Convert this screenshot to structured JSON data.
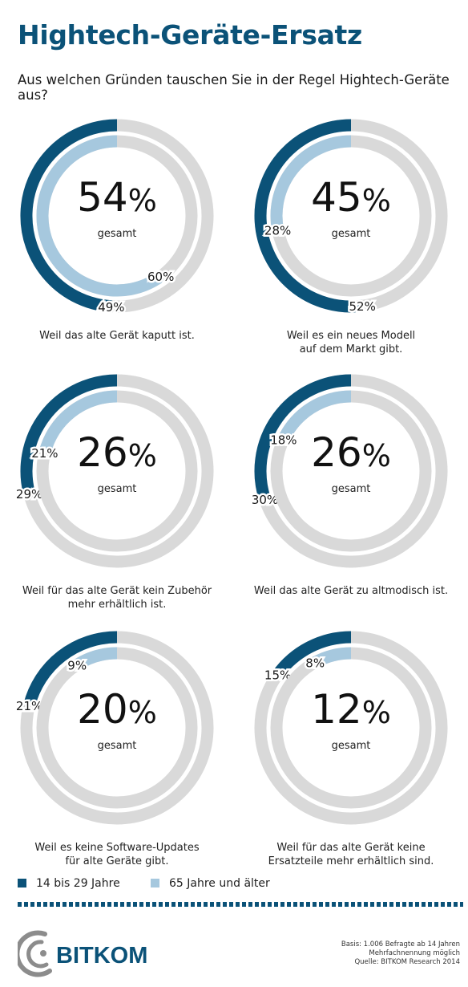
{
  "title": "Hightech-Geräte-Ersatz",
  "subtitle": "Aus welchen Gründen tauschen Sie in der Regel Hightech-Geräte aus?",
  "colors": {
    "young": "#0b5278",
    "old": "#a6c8de",
    "track": "#d9d9d9",
    "title": "#0b5278"
  },
  "total_label": "gesamt",
  "chart_data": {
    "type": "donut",
    "series": [
      {
        "name": "14 bis 29 Jahre",
        "key": "young"
      },
      {
        "name": "65 Jahre und älter",
        "key": "old"
      }
    ],
    "charts": [
      {
        "total": 54,
        "total_label": "54",
        "young": 49,
        "old": 60,
        "young_label": "49%",
        "old_label": "60%",
        "caption_lines": [
          "Weil das alte Gerät kaputt ist."
        ]
      },
      {
        "total": 45,
        "total_label": "45",
        "young": 52,
        "old": 28,
        "young_label": "52%",
        "old_label": "28%",
        "caption_lines": [
          "Weil es ein neues Modell",
          "auf dem Markt gibt."
        ]
      },
      {
        "total": 26,
        "total_label": "26",
        "young": 29,
        "old": 21,
        "young_label": "29%",
        "old_label": "21%",
        "caption_lines": [
          "Weil für das alte Gerät kein Zubehör",
          "mehr erhältlich ist."
        ]
      },
      {
        "total": 26,
        "total_label": "26",
        "young": 30,
        "old": 18,
        "young_label": "30%",
        "old_label": "18%",
        "caption_lines": [
          "Weil das alte Gerät zu altmodisch ist."
        ]
      },
      {
        "total": 20,
        "total_label": "20",
        "young": 21,
        "old": 9,
        "young_label": "21%",
        "old_label": "9%",
        "caption_lines": [
          "Weil es keine Software-Updates",
          "für alte Geräte gibt."
        ]
      },
      {
        "total": 12,
        "total_label": "12",
        "young": 15,
        "old": 8,
        "young_label": "15%",
        "old_label": "8%",
        "caption_lines": [
          "Weil für das alte Gerät keine",
          "Ersatzteile mehr erhältlich sind."
        ]
      }
    ]
  },
  "legend": [
    {
      "label": "14 bis 29 Jahre",
      "key": "young"
    },
    {
      "label": "65 Jahre und älter",
      "key": "old"
    }
  ],
  "logo_text": "BITKOM",
  "footer_lines": [
    "Basis: 1.006 Befragte ab 14 Jahren",
    "Mehrfachnennung möglich",
    "Quelle: BITKOM Research 2014"
  ]
}
